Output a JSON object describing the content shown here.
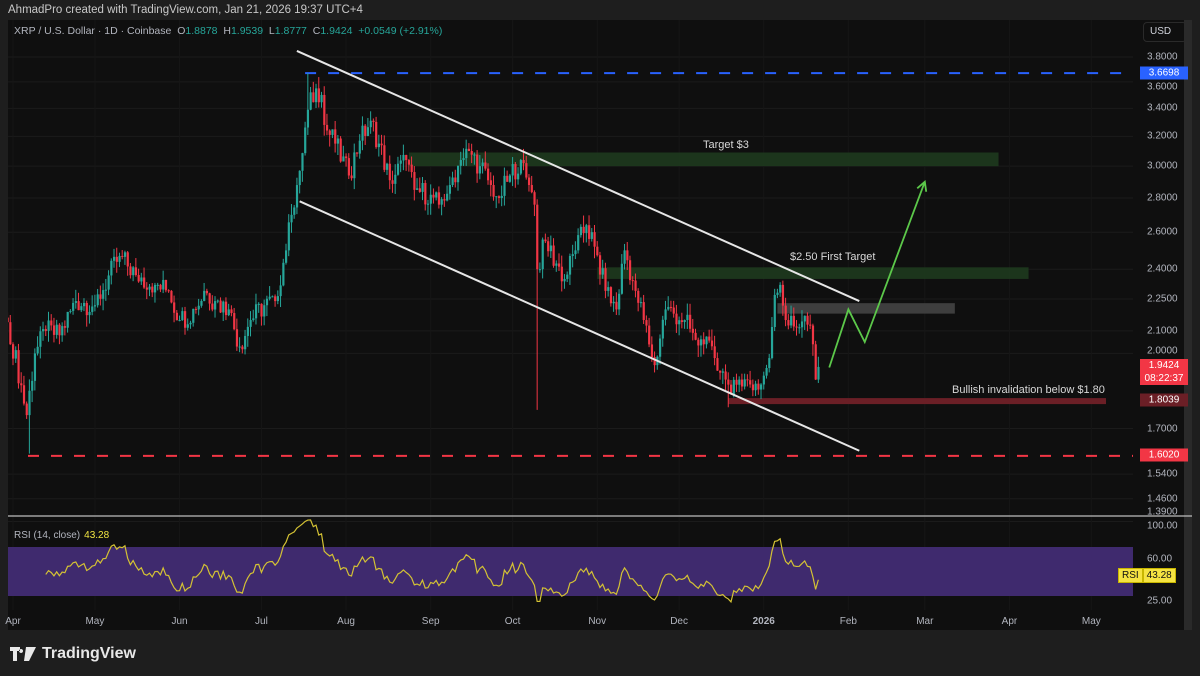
{
  "header": {
    "credit": "AhmadPro created with TradingView.com, Jan 21, 2026 19:37 UTC+4"
  },
  "legend": {
    "symbol": "XRP / U.S. Dollar · 1D · Coinbase",
    "o_label": "O",
    "o": "1.8878",
    "h_label": "H",
    "h": "1.9539",
    "l_label": "L",
    "l": "1.8777",
    "c_label": "C",
    "c": "1.9424",
    "change": "+0.0549 (+2.91%)"
  },
  "axis": {
    "currency": "USD",
    "price_ticks": [
      "3.8000",
      "3.6000",
      "3.4000",
      "3.2000",
      "3.0000",
      "2.8000",
      "2.6000",
      "2.4000",
      "2.2500",
      "2.1000",
      "2.0000",
      "1.7000",
      "1.5400",
      "1.4600",
      "1.3900"
    ],
    "time_ticks": [
      {
        "label": "Apr",
        "date": "2025-04-01"
      },
      {
        "label": "May",
        "date": "2025-05-01"
      },
      {
        "label": "Jun",
        "date": "2025-06-01"
      },
      {
        "label": "Jul",
        "date": "2025-07-01"
      },
      {
        "label": "Aug",
        "date": "2025-08-01"
      },
      {
        "label": "Sep",
        "date": "2025-09-01"
      },
      {
        "label": "Oct",
        "date": "2025-10-01"
      },
      {
        "label": "Nov",
        "date": "2025-11-01"
      },
      {
        "label": "Dec",
        "date": "2025-12-01"
      },
      {
        "label": "2026",
        "date": "2026-01-01"
      },
      {
        "label": "Feb",
        "date": "2026-02-01"
      },
      {
        "label": "Mar",
        "date": "2026-03-01"
      },
      {
        "label": "Apr",
        "date": "2026-04-01"
      },
      {
        "label": "May",
        "date": "2026-05-01"
      }
    ]
  },
  "price_labels": {
    "high_line": "3.6698",
    "last": "1.9424",
    "countdown": "08:22:37",
    "invalidation": "1.8039",
    "low_line": "1.6020"
  },
  "annotations": {
    "target3": "Target $3",
    "target250": "$2.50 First Target",
    "invalidation": "Bullish invalidation below $1.80"
  },
  "rsi": {
    "title": "RSI (14, close)",
    "value": "43.28",
    "badge": "RSI",
    "ticks": [
      "100.00",
      "60.00",
      "25.00"
    ]
  },
  "colors": {
    "up": "#26a69a",
    "down": "#f23645",
    "high_line": "#2962ff",
    "low_line": "#f23645",
    "rsi_line": "#d4c234",
    "rsi_band": "#3f2a6e",
    "zone_green": "#1e3a1e",
    "zone_gray": "#4a4a4a"
  },
  "footer": {
    "brand": "TradingView"
  },
  "chart_data": {
    "type": "candlestick",
    "scale": "log",
    "ylim": [
      1.39,
      3.85
    ],
    "closes": [
      [
        "2025-03-30",
        2.14
      ],
      [
        "2025-04-06",
        1.75
      ],
      [
        "2025-04-09",
        2.0
      ],
      [
        "2025-04-13",
        2.1
      ],
      [
        "2025-04-18",
        2.08
      ],
      [
        "2025-04-24",
        2.24
      ],
      [
        "2025-05-01",
        2.22
      ],
      [
        "2025-05-10",
        2.47
      ],
      [
        "2025-05-16",
        2.37
      ],
      [
        "2025-05-23",
        2.32
      ],
      [
        "2025-05-28",
        2.29
      ],
      [
        "2025-06-01",
        2.15
      ],
      [
        "2025-06-07",
        2.2
      ],
      [
        "2025-06-10",
        2.29
      ],
      [
        "2025-06-14",
        2.24
      ],
      [
        "2025-06-19",
        2.2
      ],
      [
        "2025-06-23",
        2.03
      ],
      [
        "2025-06-27",
        2.15
      ],
      [
        "2025-07-02",
        2.22
      ],
      [
        "2025-07-06",
        2.24
      ],
      [
        "2025-07-10",
        2.5
      ],
      [
        "2025-07-12",
        2.7
      ],
      [
        "2025-07-15",
        2.97
      ],
      [
        "2025-07-18",
        3.39
      ],
      [
        "2025-07-21",
        3.55
      ],
      [
        "2025-07-23",
        3.5
      ],
      [
        "2025-07-24",
        3.28
      ],
      [
        "2025-07-28",
        3.15
      ],
      [
        "2025-08-02",
        2.94
      ],
      [
        "2025-08-06",
        3.17
      ],
      [
        "2025-08-10",
        3.31
      ],
      [
        "2025-08-13",
        3.15
      ],
      [
        "2025-08-17",
        2.91
      ],
      [
        "2025-08-23",
        3.04
      ],
      [
        "2025-08-26",
        2.85
      ],
      [
        "2025-09-01",
        2.82
      ],
      [
        "2025-09-04",
        2.76
      ],
      [
        "2025-09-08",
        2.88
      ],
      [
        "2025-09-12",
        3.04
      ],
      [
        "2025-09-15",
        3.1
      ],
      [
        "2025-09-19",
        3.0
      ],
      [
        "2025-09-23",
        2.88
      ],
      [
        "2025-09-26",
        2.8
      ],
      [
        "2025-09-30",
        2.94
      ],
      [
        "2025-10-04",
        3.04
      ],
      [
        "2025-10-07",
        2.88
      ],
      [
        "2025-10-09",
        2.76
      ],
      [
        "2025-10-10",
        2.4
      ],
      [
        "2025-10-13",
        2.55
      ],
      [
        "2025-10-17",
        2.43
      ],
      [
        "2025-10-20",
        2.35
      ],
      [
        "2025-10-24",
        2.5
      ],
      [
        "2025-10-28",
        2.64
      ],
      [
        "2025-10-31",
        2.52
      ],
      [
        "2025-11-04",
        2.29
      ],
      [
        "2025-11-08",
        2.2
      ],
      [
        "2025-11-11",
        2.5
      ],
      [
        "2025-11-15",
        2.29
      ],
      [
        "2025-11-18",
        2.15
      ],
      [
        "2025-11-22",
        1.95
      ],
      [
        "2025-11-26",
        2.2
      ],
      [
        "2025-11-29",
        2.18
      ],
      [
        "2025-12-03",
        2.15
      ],
      [
        "2025-12-07",
        2.06
      ],
      [
        "2025-12-10",
        2.04
      ],
      [
        "2025-12-14",
        1.98
      ],
      [
        "2025-12-18",
        1.89
      ],
      [
        "2025-12-20",
        1.83
      ],
      [
        "2025-12-23",
        1.89
      ],
      [
        "2025-12-27",
        1.87
      ],
      [
        "2025-12-31",
        1.87
      ],
      [
        "2026-01-03",
        1.98
      ],
      [
        "2026-01-05",
        2.27
      ],
      [
        "2026-01-07",
        2.32
      ],
      [
        "2026-01-09",
        2.15
      ],
      [
        "2026-01-12",
        2.12
      ],
      [
        "2026-01-16",
        2.17
      ],
      [
        "2026-01-19",
        2.04
      ],
      [
        "2026-01-20",
        1.89
      ],
      [
        "2026-01-21",
        1.9424
      ]
    ],
    "extreme_wicks": [
      [
        "2025-04-07",
        1.61
      ],
      [
        "2025-07-18",
        3.6698
      ],
      [
        "2025-10-10",
        1.77
      ],
      [
        "2025-12-19",
        1.78
      ]
    ],
    "levels": {
      "high": 3.6698,
      "low": 1.602,
      "invalidation": 1.8039
    },
    "zones": [
      {
        "label": "Target $3",
        "from": 3.0,
        "to": 3.09,
        "start": "2025-08-24",
        "end": "2026-03-28"
      },
      {
        "label": "$2.50 First Target",
        "from": 2.35,
        "to": 2.41,
        "start": "2025-11-01",
        "end": "2026-04-08"
      },
      {
        "label": "",
        "from": 2.18,
        "to": 2.23,
        "start": "2026-01-06",
        "end": "2026-03-12"
      }
    ],
    "channel": {
      "upper": [
        [
          "2025-07-14",
          3.85
        ],
        [
          "2026-02-05",
          2.24
        ]
      ],
      "lower": [
        [
          "2025-07-15",
          2.78
        ],
        [
          "2026-02-05",
          1.62
        ]
      ]
    },
    "projection": [
      [
        "2026-01-25",
        1.94
      ],
      [
        "2026-02-01",
        2.2
      ],
      [
        "2026-02-07",
        2.05
      ],
      [
        "2026-03-01",
        2.9
      ]
    ],
    "rsi_levels": {
      "upper": 70,
      "lower": 30
    },
    "rsi_last": 43.28
  }
}
